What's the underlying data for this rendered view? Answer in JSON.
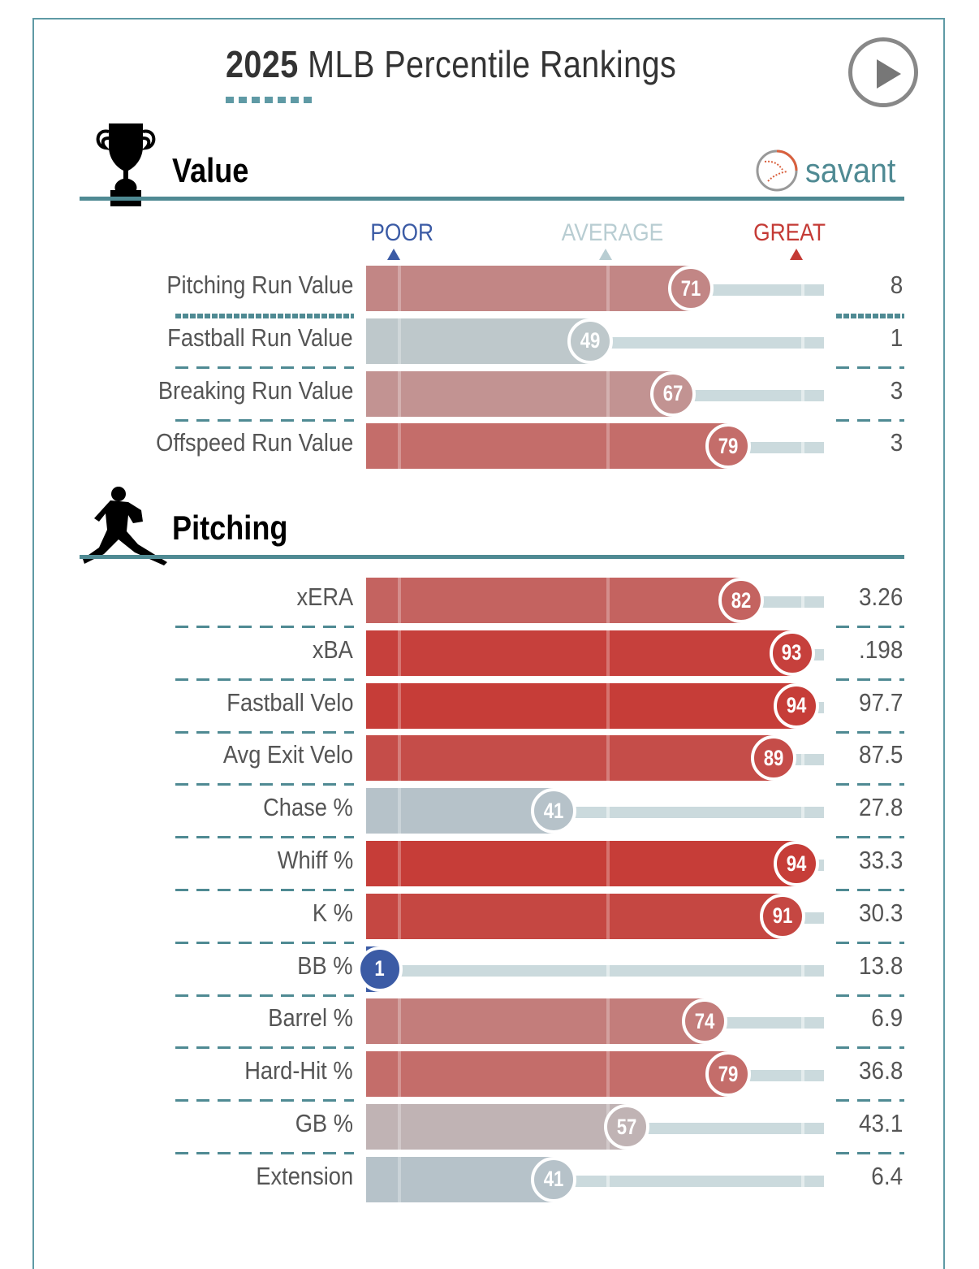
{
  "header": {
    "title_year": "2025",
    "title_rest": " MLB Percentile Rankings",
    "play_button": "play-icon",
    "brand": "savant"
  },
  "scale": {
    "poor": "POOR",
    "average": "AVERAGE",
    "great": "GREAT"
  },
  "colors": {
    "poor": "#3b5ba5",
    "average": "#b8cdd2",
    "great": "#c43a35",
    "accent": "#4f8a93"
  },
  "sections": [
    {
      "title": "Value",
      "icon": "trophy-icon"
    },
    {
      "title": "Pitching",
      "icon": "pitcher-icon"
    }
  ],
  "chart_data": {
    "type": "bar",
    "title": "2025 MLB Percentile Rankings",
    "xlabel": "Percentile",
    "xlim": [
      0,
      100
    ],
    "scale_labels": [
      "POOR",
      "AVERAGE",
      "GREAT"
    ],
    "groups": [
      {
        "name": "Value",
        "rows": [
          {
            "label": "Pitching Run Value",
            "percentile": 71,
            "value": "8"
          },
          {
            "label": "Fastball Run Value",
            "percentile": 49,
            "value": "1"
          },
          {
            "label": "Breaking Run Value",
            "percentile": 67,
            "value": "3"
          },
          {
            "label": "Offspeed Run Value",
            "percentile": 79,
            "value": "3"
          }
        ]
      },
      {
        "name": "Pitching",
        "rows": [
          {
            "label": "xERA",
            "percentile": 82,
            "value": "3.26"
          },
          {
            "label": "xBA",
            "percentile": 93,
            "value": ".198"
          },
          {
            "label": "Fastball Velo",
            "percentile": 94,
            "value": "97.7"
          },
          {
            "label": "Avg Exit Velo",
            "percentile": 89,
            "value": "87.5"
          },
          {
            "label": "Chase %",
            "percentile": 41,
            "value": "27.8"
          },
          {
            "label": "Whiff %",
            "percentile": 94,
            "value": "33.3"
          },
          {
            "label": "K %",
            "percentile": 91,
            "value": "30.3"
          },
          {
            "label": "BB %",
            "percentile": 1,
            "value": "13.8"
          },
          {
            "label": "Barrel %",
            "percentile": 74,
            "value": "6.9"
          },
          {
            "label": "Hard-Hit %",
            "percentile": 79,
            "value": "36.8"
          },
          {
            "label": "GB %",
            "percentile": 57,
            "value": "43.1"
          },
          {
            "label": "Extension",
            "percentile": 41,
            "value": "6.4"
          }
        ]
      }
    ]
  }
}
